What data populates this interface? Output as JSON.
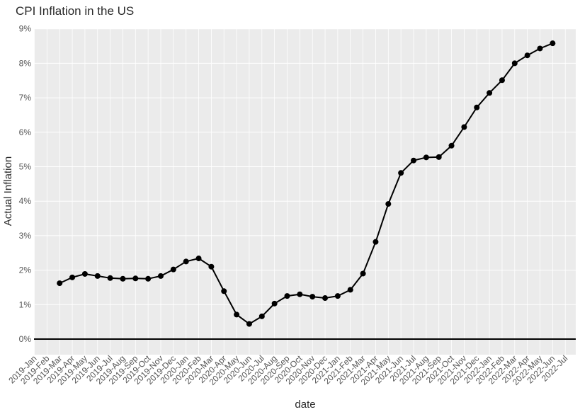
{
  "chart_data": {
    "type": "line",
    "title": "CPI Inflation in the US",
    "xlabel": "date",
    "ylabel": "Actual Inflation",
    "ylim": [
      0,
      9
    ],
    "y_ticks": [
      "0%",
      "1%",
      "2%",
      "3%",
      "4%",
      "5%",
      "6%",
      "7%",
      "8%",
      "9%"
    ],
    "x_ticks": [
      "2019-Jan",
      "2019-Feb",
      "2019-Mar",
      "2019-Apr",
      "2019-May",
      "2019-Jun",
      "2019-Jul",
      "2019-Aug",
      "2019-Sep",
      "2019-Oct",
      "2019-Nov",
      "2019-Dec",
      "2020-Jan",
      "2020-Feb",
      "2020-Mar",
      "2020-Apr",
      "2020-May",
      "2020-Jun",
      "2020-Jul",
      "2020-Aug",
      "2020-Sep",
      "2020-Oct",
      "2020-Nov",
      "2020-Dec",
      "2021-Jan",
      "2021-Feb",
      "2021-Mar",
      "2021-Apr",
      "2021-May",
      "2021-Jun",
      "2021-Jul",
      "2021-Aug",
      "2021-Sep",
      "2021-Oct",
      "2021-Nov",
      "2021-Dec",
      "2022-Jan",
      "2022-Feb",
      "2022-Mar",
      "2022-Apr",
      "2022-May",
      "2022-Jun",
      "2022-Jul"
    ],
    "x": [
      "2019-Mar",
      "2019-Apr",
      "2019-May",
      "2019-Jun",
      "2019-Jul",
      "2019-Aug",
      "2019-Sep",
      "2019-Oct",
      "2019-Nov",
      "2019-Dec",
      "2020-Jan",
      "2020-Feb",
      "2020-Mar",
      "2020-Apr",
      "2020-May",
      "2020-Jun",
      "2020-Jul",
      "2020-Aug",
      "2020-Sep",
      "2020-Oct",
      "2020-Nov",
      "2020-Dec",
      "2021-Jan",
      "2021-Feb",
      "2021-Mar",
      "2021-Apr",
      "2021-May",
      "2021-Jun",
      "2021-Jul",
      "2021-Aug",
      "2021-Sep",
      "2021-Oct",
      "2021-Nov",
      "2021-Dec",
      "2022-Jan",
      "2022-Feb",
      "2022-Mar",
      "2022-Apr",
      "2022-May",
      "2022-Jun"
    ],
    "series": [
      {
        "values": [
          1.62,
          1.79,
          1.89,
          1.83,
          1.77,
          1.75,
          1.76,
          1.75,
          1.83,
          2.02,
          2.25,
          2.34,
          2.1,
          1.39,
          0.71,
          0.44,
          0.66,
          1.03,
          1.25,
          1.3,
          1.23,
          1.19,
          1.25,
          1.43,
          1.9,
          2.82,
          3.92,
          4.82,
          5.18,
          5.27,
          5.28,
          5.61,
          6.15,
          6.72,
          7.14,
          7.51,
          8.0,
          8.23,
          8.43,
          8.58
        ]
      }
    ],
    "zero_line": true,
    "grid": true,
    "colors": {
      "background": "#ebebeb",
      "grid": "#ffffff",
      "line": "#000000"
    }
  }
}
